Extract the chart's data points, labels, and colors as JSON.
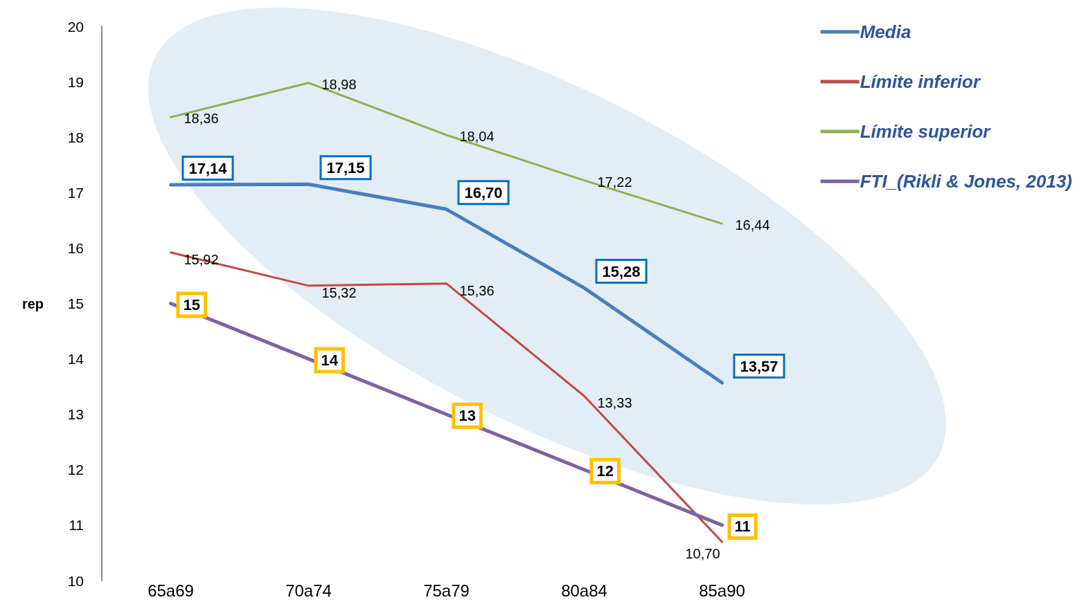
{
  "chart_data": {
    "type": "line",
    "ylabel": "rep",
    "categories": [
      "65a69",
      "70a74",
      "75a79",
      "80a84",
      "85a90"
    ],
    "series": [
      {
        "name": "Media",
        "color": "#4a7ebb",
        "values": [
          17.14,
          17.15,
          16.7,
          15.28,
          13.57
        ],
        "value_labels": [
          "17,14",
          "17,15",
          "16,70",
          "15,28",
          "13,57"
        ]
      },
      {
        "name": "Límite inferior",
        "color": "#be4b48",
        "values": [
          15.92,
          15.32,
          15.36,
          13.33,
          10.7
        ],
        "value_labels": [
          "15,92",
          "15,32",
          "15,36",
          "13,33",
          "10,70"
        ]
      },
      {
        "name": "Límite superior",
        "color": "#8cb251",
        "values": [
          18.36,
          18.98,
          18.04,
          17.22,
          16.44
        ],
        "value_labels": [
          "18,36",
          "18,98",
          "18,04",
          "17,22",
          "16,44"
        ]
      },
      {
        "name": "FTI_(Rikli & Jones, 2013)",
        "color": "#7f62a0",
        "values": [
          15,
          14,
          13,
          12,
          11
        ],
        "value_labels": [
          "15",
          "14",
          "13",
          "12",
          "11"
        ]
      }
    ],
    "ylim": [
      10,
      20
    ],
    "yticks": [
      10,
      11,
      12,
      13,
      14,
      15,
      16,
      17,
      18,
      19,
      20
    ],
    "grid": false,
    "legend": "top right",
    "marker": "none",
    "line_style": "solid"
  }
}
